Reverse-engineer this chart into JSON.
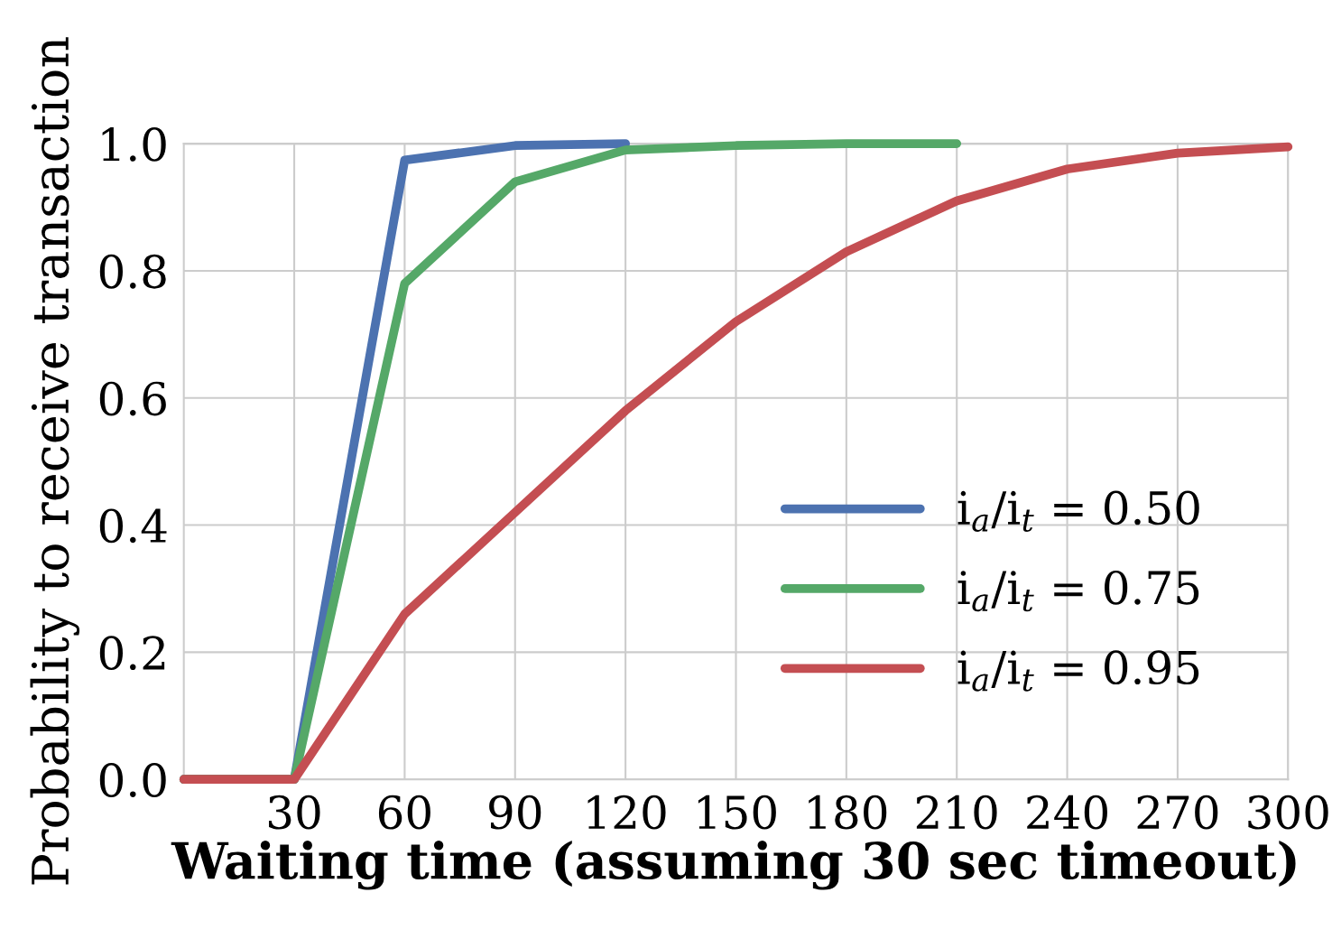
{
  "chart_data": {
    "type": "line",
    "xlabel": "Waiting time (assuming 30 sec timeout)",
    "ylabel": "Probability to receive transaction",
    "series": [
      {
        "name": "i$_{a}$/i$_{t}$ = 0.50",
        "color": "#4c72b0",
        "x": [
          0,
          30,
          60,
          90,
          120
        ],
        "values": [
          0,
          0,
          0.974,
          0.997,
          1.0
        ]
      },
      {
        "name": "i$_{a}$/i$_{t}$ = 0.75",
        "color": "#55a868",
        "x": [
          0,
          30,
          60,
          90,
          120,
          150,
          180,
          210
        ],
        "values": [
          0,
          0,
          0.78,
          0.94,
          0.99,
          0.997,
          1.0,
          1.0
        ]
      },
      {
        "name": "i$_{a}$/i$_{t}$ = 0.95",
        "color": "#c44e52",
        "x": [
          0,
          30,
          60,
          90,
          120,
          150,
          180,
          210,
          240,
          270,
          300
        ],
        "values": [
          0,
          0,
          0.26,
          0.42,
          0.58,
          0.72,
          0.83,
          0.91,
          0.96,
          0.985,
          0.995
        ]
      }
    ],
    "xlim": [
      0,
      300
    ],
    "ylim": [
      0,
      1.0
    ],
    "xticks": [
      30,
      60,
      90,
      120,
      150,
      180,
      210,
      240,
      270,
      300
    ],
    "yticks": [
      {
        "value": 0,
        "label": "0.0"
      },
      {
        "value": 0.2,
        "label": "0.2"
      },
      {
        "value": 0.4,
        "label": "0.4"
      },
      {
        "value": 0.6,
        "label": "0.6"
      },
      {
        "value": 0.8,
        "label": "0.8"
      },
      {
        "value": 1.0,
        "label": "1.0"
      }
    ],
    "grid": true,
    "legend": "lower right",
    "marker": "none",
    "line_style": "solid"
  }
}
